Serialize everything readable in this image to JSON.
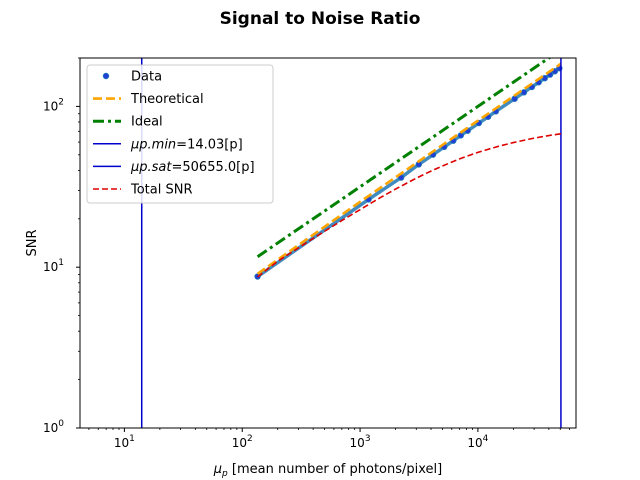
{
  "chart_data": {
    "type": "line",
    "title": "Signal to Noise Ratio",
    "xlabel_symbol": "μ",
    "xlabel_sub": "p",
    "xlabel_text": " [mean number of photons/pixel]",
    "ylabel": "SNR",
    "xscale": "log",
    "yscale": "log",
    "xlim": [
      4.2,
      68000
    ],
    "ylim": [
      1,
      200
    ],
    "x_ticks": [
      {
        "base": "10",
        "exp": "1",
        "value": 10
      },
      {
        "base": "10",
        "exp": "2",
        "value": 100
      },
      {
        "base": "10",
        "exp": "3",
        "value": 1000
      },
      {
        "base": "10",
        "exp": "4",
        "value": 10000
      }
    ],
    "y_ticks": [
      {
        "base": "10",
        "exp": "0",
        "value": 1
      },
      {
        "base": "10",
        "exp": "1",
        "value": 10
      },
      {
        "base": "10",
        "exp": "2",
        "value": 100
      }
    ],
    "grid": false,
    "legend_position": "upper-left",
    "series": [
      {
        "name": "Data",
        "style": "markers",
        "color": "#1f3fd6",
        "marker_edge": "#1f77b4",
        "x": [
          135,
          1180,
          2230,
          3150,
          4160,
          5180,
          6180,
          7160,
          8190,
          10200,
          12200,
          14200,
          20500,
          24600,
          28700,
          32800,
          36900,
          41000,
          45000,
          49100
        ],
        "y": [
          8.75,
          26.4,
          36.1,
          43.6,
          50.1,
          56.0,
          61.2,
          66.0,
          70.6,
          78.8,
          86.2,
          93.2,
          111.6,
          122.3,
          132.1,
          141.3,
          149.8,
          157.8,
          165.4,
          172.8
        ]
      },
      {
        "name": "Theoretical",
        "style": "dashed",
        "color": "#ffa500",
        "x": [
          135,
          1000,
          5000,
          10000,
          20000,
          50655
        ],
        "y": [
          9.1,
          25.5,
          57.5,
          81.5,
          115.5,
          184.2
        ]
      },
      {
        "name": "Ideal",
        "style": "dashdot",
        "color": "#008000",
        "x": [
          135,
          1000,
          10000,
          50655
        ],
        "y": [
          11.62,
          31.62,
          100.0,
          225.07
        ]
      },
      {
        "name": "μp.min=14.03[p]",
        "label_math": "μp.min",
        "label_value": "=14.03[p]",
        "style": "vline",
        "color": "#0000cc",
        "x": 14.03
      },
      {
        "name": "μp.sat=50655.0[p]",
        "label_math": "μp.sat",
        "label_value": "=50655.0[p]",
        "style": "vline",
        "color": "#0000cc",
        "x": 50655.0
      },
      {
        "name": "Total SNR",
        "style": "dashed",
        "color": "#dd0000",
        "x": [
          135,
          200,
          400,
          700,
          1000,
          1500,
          2000,
          3000,
          4000,
          5000,
          7000,
          10000,
          15000,
          20000,
          30000,
          40000,
          50655
        ],
        "y": [
          8.7,
          10.9,
          15.1,
          19.5,
          22.8,
          27.2,
          30.6,
          35.8,
          39.6,
          42.6,
          47.2,
          51.8,
          56.5,
          59.6,
          63.5,
          65.9,
          67.6
        ]
      }
    ]
  }
}
